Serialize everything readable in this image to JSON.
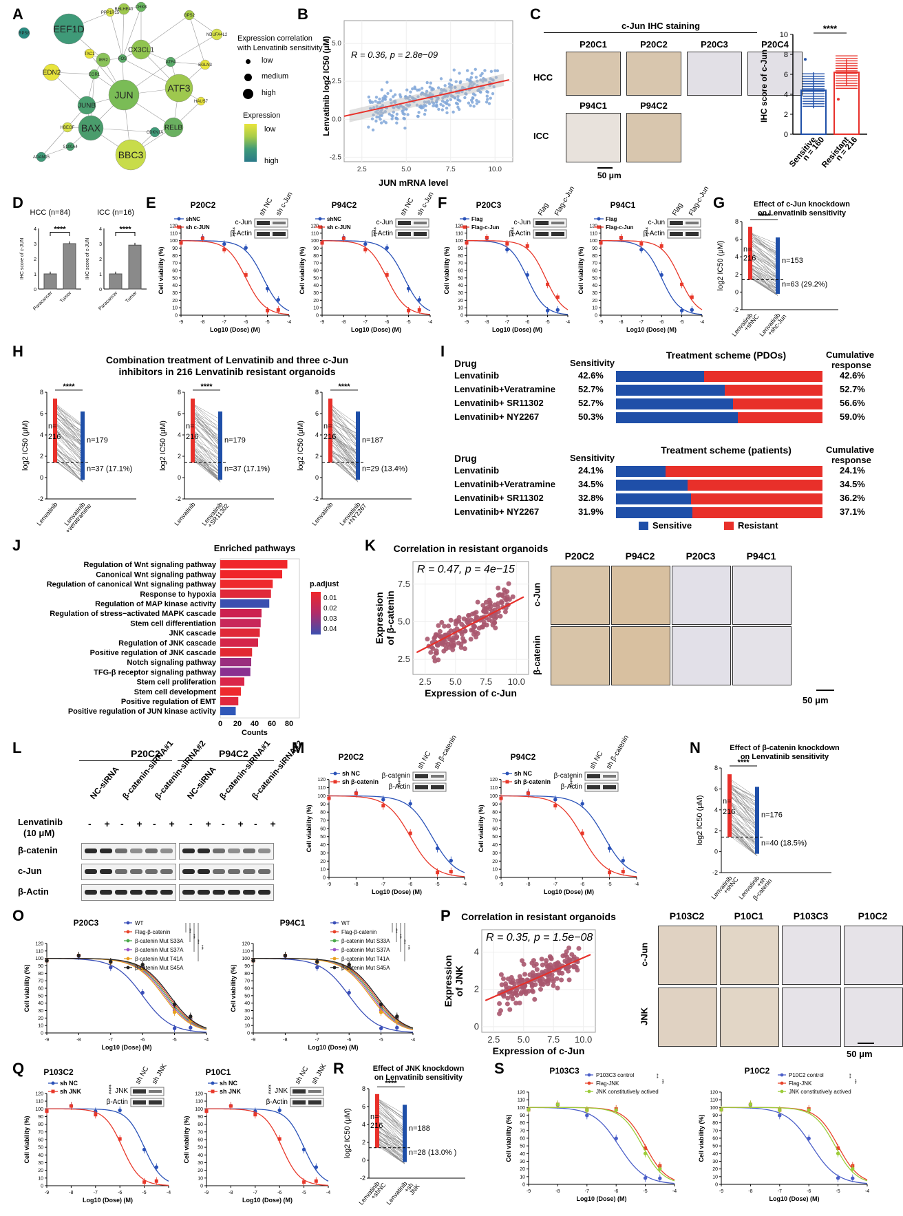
{
  "labels": {
    "A": "A",
    "B": "B",
    "C": "C",
    "D": "D",
    "E": "E",
    "F": "F",
    "G": "G",
    "H": "H",
    "I": "I",
    "J": "J",
    "K": "K",
    "L": "L",
    "M": "M",
    "N": "N",
    "O": "O",
    "P": "P",
    "Q": "Q",
    "R": "R",
    "S": "S"
  },
  "common": {
    "cell_viability": "Cell viability (%)",
    "log10_dose": "Log10 (Dose) (M)",
    "log2_ic50": "log2 IC50 (μM)",
    "scale_bar": "50 μm",
    "stars4": "****",
    "stars3": "***",
    "actin": "β-Actin"
  },
  "panel_a": {
    "legend_title1": "Expression correlation",
    "legend_title2": "with Lenvatinib sensitivity",
    "size_levels": [
      "low",
      "medium",
      "high"
    ],
    "legend_title3": "Expression",
    "grad_low": "low",
    "grad_high": "high",
    "nodes": [
      {
        "label": "RPS8"
      },
      {
        "label": "EEF1D"
      },
      {
        "label": "PPP1R15"
      },
      {
        "label": "BHLHE40"
      },
      {
        "label": "CHKB"
      },
      {
        "label": "GPS2"
      },
      {
        "label": "NDUFA4L2"
      },
      {
        "label": "TAC1"
      },
      {
        "label": "CX3CL1"
      },
      {
        "label": "IER2"
      },
      {
        "label": "FOS"
      },
      {
        "label": "ATF4"
      },
      {
        "label": "EGLN3"
      },
      {
        "label": "EDN2"
      },
      {
        "label": "EGR1"
      },
      {
        "label": "JUN"
      },
      {
        "label": "ATF3"
      },
      {
        "label": "HAUS7"
      },
      {
        "label": "JUNB"
      },
      {
        "label": "HBEGF"
      },
      {
        "label": "BAX"
      },
      {
        "label": "CDKN1A"
      },
      {
        "label": "RELB"
      },
      {
        "label": "S100A4"
      },
      {
        "label": "ADAM15"
      },
      {
        "label": "BBC3"
      }
    ]
  },
  "panel_b": {
    "stat": "R = 0.36, p = 2.8e−09",
    "ylabel": "Lenvatinib log2 IC50 (μM)",
    "xlabel": "JUN mRNA level",
    "xticks": [
      "2.5",
      "5.0",
      "7.5",
      "10.0"
    ],
    "yticks": [
      "5.0",
      "2.5",
      "0.0",
      "-2.5"
    ]
  },
  "panel_c": {
    "title": "c-Jun IHC staining",
    "rows": [
      "HCC",
      "ICC"
    ],
    "hcc_samples": [
      "P20C1",
      "P20C2",
      "P20C3",
      "P20C4"
    ],
    "icc_samples": [
      "P94C1",
      "P94C2"
    ],
    "ylabel": "IHC score of c-Jun",
    "yticks": [
      "10",
      "8",
      "6",
      "4",
      "2",
      "0"
    ],
    "groups": [
      "Sensitive",
      "Resistant"
    ],
    "n": [
      "n = 160",
      "n = 216"
    ]
  },
  "panel_d": {
    "charts": [
      {
        "title": "HCC (n=84)",
        "ylabel": "IHC score of c-JUN",
        "cats": [
          "Paracancer",
          "Tumor"
        ],
        "yticks": [
          "4",
          "3",
          "2",
          "1",
          "0"
        ]
      },
      {
        "title": "ICC (n=16)",
        "ylabel": "IHC score of c-JUN",
        "cats": [
          "Paracancer",
          "Tumor"
        ],
        "yticks": [
          "4",
          "3",
          "2",
          "1",
          "0"
        ]
      }
    ]
  },
  "panel_e": {
    "charts": [
      {
        "title": "P20C2",
        "s1": "shNC",
        "s2": "sh c-JUN",
        "blot_top": "c-Jun",
        "lanes": [
          "sh NC",
          "sh c-Jun"
        ]
      },
      {
        "title": "P94C2",
        "s1": "shNC",
        "s2": "sh c-JUN",
        "blot_top": "c-Jun",
        "lanes": [
          "sh NC",
          "sh c-Jun"
        ]
      }
    ]
  },
  "panel_f": {
    "charts": [
      {
        "title": "P20C3",
        "s1": "Flag",
        "s2": "Flag-c-Jun",
        "blot_top": "c-Jun",
        "lanes": [
          "Flag",
          "Flag-c-Jun"
        ]
      },
      {
        "title": "P94C1",
        "s1": "Flag",
        "s2": "Flag-c-Jun",
        "blot_top": "c-Jun",
        "lanes": [
          "Flag",
          "Flag-c-Jun"
        ]
      }
    ]
  },
  "panel_g": {
    "title1": "Effect of c-Jun knockdown",
    "title2": "on Lenvatinib sensitivity",
    "n_left": "n=",
    "n_left2": "216",
    "n_up": "n=153",
    "n_down": "n=63 (29.2%)",
    "xcats": [
      "Lenvatinib +shNC",
      "Lenvatinib +shc-Jun"
    ]
  },
  "panel_h": {
    "title1": "Combination treatment of Lenvatinib and three c-Jun",
    "title2": "inhibitors in 216 Lenvatinib resistant organoids",
    "charts": [
      {
        "n_up": "n=179",
        "n_down": "n=37 (17.1%)",
        "x1": "Lenvatinib",
        "x2": "Lenvatinib +veratramine"
      },
      {
        "n_up": "n=179",
        "n_down": "n=37 (17.1%)",
        "x1": "Lenvatinib",
        "x2": "Lenvatinib +SR11302"
      },
      {
        "n_up": "n=187",
        "n_down": "n=29 (13.4%)",
        "x1": "Lenvatinib",
        "x2": "Lenvatinib +NY2267"
      }
    ]
  },
  "panel_i": {
    "col_drug": "Drug",
    "col_sens": "Sensitivity",
    "title_pdo": "Treatment scheme (PDOs)",
    "title_pat": "Treatment scheme (patients)",
    "col_cum1": "Cumulative",
    "col_cum2": "response",
    "pdo_rows": [
      {
        "drug": "Lenvatinib",
        "sens": "42.6%",
        "cum": "42.6%",
        "blue": 0.426
      },
      {
        "drug": "Lenvatinib+Veratramine",
        "sens": "52.7%",
        "cum": "52.7%",
        "blue": 0.527
      },
      {
        "drug": "Lenvatinib+ SR11302",
        "sens": "52.7%",
        "cum": "56.6%",
        "blue": 0.566
      },
      {
        "drug": "Lenvatinib+ NY2267",
        "sens": "50.3%",
        "cum": "59.0%",
        "blue": 0.59
      }
    ],
    "pat_rows": [
      {
        "drug": "Lenvatinib",
        "sens": "24.1%",
        "cum": "24.1%",
        "blue": 0.241
      },
      {
        "drug": "Lenvatinib+Veratramine",
        "sens": "34.5%",
        "cum": "34.5%",
        "blue": 0.345
      },
      {
        "drug": "Lenvatinib+ SR11302",
        "sens": "32.8%",
        "cum": "36.2%",
        "blue": 0.362
      },
      {
        "drug": "Lenvatinib+ NY2267",
        "sens": "31.9%",
        "cum": "37.1%",
        "blue": 0.371
      }
    ],
    "legend_sens": "Sensitive",
    "legend_res": "Resistant",
    "color_sens": "#1f4fa8",
    "color_res": "#e8302a"
  },
  "panel_j": {
    "title": "Enriched pathways",
    "xlabel": "Counts",
    "xticks": [
      "0",
      "20",
      "40",
      "60",
      "80"
    ],
    "legend_title": "p.adjust",
    "legend_ticks": [
      "0.01",
      "0.02",
      "0.03",
      "0.04"
    ]
  },
  "chart_data": [
    {
      "type": "bar",
      "title": "Enriched pathways",
      "xlabel": "Counts",
      "xlim": [
        0,
        80
      ],
      "categories": [
        "Regulation of Wnt signaling pathway",
        "Canonical Wnt signaling pathway",
        "Regulation of canonical Wnt signaling pathway",
        "Response to hypoxia",
        "Regulation of MAP kinase activity",
        "Regulation of stress−activated MAPK cascade",
        "Stem cell differentiation",
        "JNK cascade",
        "Regulation of JNK cascade",
        "Positive regulation of JNK cascade",
        "Notch signaling pathway",
        "TFG-β receptor signaling pathway",
        "Stem cell proliferation",
        "Stem cell development",
        "Positive regulation of EMT",
        "Positive regulation of JUN kinase activity"
      ],
      "values": [
        78,
        72,
        61,
        59,
        57,
        48,
        47,
        46,
        44,
        37,
        36,
        35,
        28,
        24,
        21,
        18
      ],
      "colors": [
        "#f0262a",
        "#f0262a",
        "#ee2a2e",
        "#e02a3a",
        "#3b4fb0",
        "#cc2250",
        "#c8285a",
        "#e02a38",
        "#d4264a",
        "#e22a32",
        "#9a2e7e",
        "#8a3090",
        "#da264a",
        "#ee2a2e",
        "#e0283e",
        "#2f57b8"
      ]
    },
    {
      "type": "scatter",
      "title": "",
      "xlabel": "JUN mRNA level",
      "ylabel": "Lenvatinib log2 IC50 (μM)",
      "xlim": [
        1.5,
        11
      ],
      "ylim": [
        -2.8,
        6.5
      ],
      "annotation": "R = 0.36, p = 2.8e−09",
      "fit": {
        "x": [
          1.5,
          10.8
        ],
        "y": [
          0.2,
          2.6
        ]
      }
    }
  ],
  "panel_k": {
    "title": "Correlation in resistant organoids",
    "stat": "R = 0.47, p = 4e−15",
    "ylabel1": "Expression",
    "ylabel2": "of β-catenin",
    "xlabel": "Expression of c-Jun",
    "xticks": [
      "2.5",
      "5.0",
      "7.5",
      "10.0"
    ],
    "yticks": [
      "7.5",
      "5.0",
      "2.5"
    ],
    "samples": [
      "P20C2",
      "P94C2",
      "P20C3",
      "P94C1"
    ],
    "rows": [
      "c-Jun",
      "β-catenin"
    ]
  },
  "panel_l": {
    "groups": [
      "P20C2",
      "P94C2"
    ],
    "lanes": [
      "NC-siRNA",
      "β-catenin-siRNA#1",
      "β-catenin-siRNA#2",
      "NC-siRNA",
      "β-catenin-siRNA#1",
      "β-catenin-siRNA#2"
    ],
    "treat1": "Lenvatinib",
    "treat2": "(10 μM)",
    "signs": [
      "-",
      "+",
      "-",
      "+",
      "-",
      "+",
      "-",
      "+",
      "-",
      "+",
      "-",
      "+"
    ],
    "bands": [
      "β-catenin",
      "c-Jun",
      "β-Actin"
    ]
  },
  "panel_m": {
    "charts": [
      {
        "title": "P20C2",
        "s1": "sh NC",
        "s2": "sh β-catenin",
        "blot_top": "β-catenin",
        "lanes": [
          "sh NC",
          "sh β-catenin"
        ]
      },
      {
        "title": "P94C2",
        "s1": "sh NC",
        "s2": "sh β-catenin",
        "blot_top": "β-catenin",
        "lanes": [
          "sh NC",
          "sh β-catenin"
        ]
      }
    ]
  },
  "panel_n": {
    "title1": "Effect of β-catenin knockdown",
    "title2": "on Lenvatinib sensitivity",
    "n_left": "n=",
    "n_left2": "216",
    "n_up": "n=176",
    "n_down": "n=40 (18.5%)",
    "xcats": [
      "Lenvatinib +shNC",
      "Lenvatinib +sh β-catenin"
    ]
  },
  "panel_o": {
    "charts": [
      {
        "title": "P20C3"
      },
      {
        "title": "P94C1"
      }
    ],
    "legend": [
      "WT",
      "Flag-β-catenin",
      "β-catenin Mut S33A",
      "β-catenin Mut S37A",
      "β-catenin Mut T41A",
      "β-catenin Mut S45A"
    ],
    "legend_colors": [
      "#3a4fb8",
      "#e8432a",
      "#4aa84a",
      "#9a55c8",
      "#e8a020",
      "#222222"
    ]
  },
  "panel_p": {
    "title": "Correlation in resistant organoids",
    "stat": "R = 0.35, p = 1.5e−08",
    "ylabel1": "Expression",
    "ylabel2": "of JNK",
    "xlabel": "Expression of c-Jun",
    "xticks": [
      "2.5",
      "5.0",
      "7.5",
      "10.0"
    ],
    "yticks": [
      "4",
      "2",
      "0"
    ],
    "samples": [
      "P103C2",
      "P10C1",
      "P103C3",
      "P10C2"
    ],
    "rows": [
      "c-Jun",
      "JNK"
    ]
  },
  "panel_q": {
    "charts": [
      {
        "title": "P103C2",
        "s1": "sh NC",
        "s2": "sh JNK",
        "blot_top": "JNK",
        "lanes": [
          "sh NC",
          "sh JNK"
        ]
      },
      {
        "title": "P10C1",
        "s1": "sh NC",
        "s2": "sh JNK",
        "blot_top": "JNK",
        "lanes": [
          "sh NC",
          "sh JNK"
        ]
      }
    ]
  },
  "panel_r": {
    "title1": "Effect of JNK knockdown",
    "title2": "on Lenvatinib sensitivity",
    "n_left": "n=",
    "n_left2": "216",
    "n_up": "n=188",
    "n_down": "n=28 (13.0% )",
    "xcats": [
      "Lenvatinib +shNC",
      "Lenvatinib +sh JNK"
    ]
  },
  "panel_s": {
    "charts": [
      {
        "title": "P103C3",
        "legend": [
          "P103C3 control",
          "Flag-JNK",
          "JNK constitutively actived"
        ]
      },
      {
        "title": "P10C2",
        "legend": [
          "P10C2 control",
          "Flag-JNK",
          "JNK constitutively actived"
        ]
      }
    ]
  }
}
